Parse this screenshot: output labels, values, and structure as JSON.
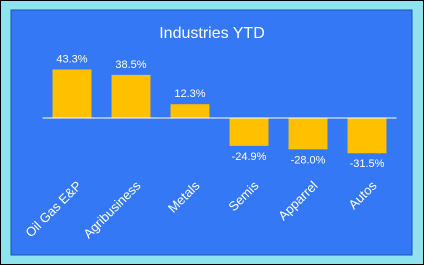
{
  "chart_data": {
    "type": "bar",
    "title": "Industries YTD",
    "categories": [
      "Oil Gas E&P",
      "Agribusiness",
      "Metals",
      "Semis",
      "Apparrel",
      "Autos"
    ],
    "values": [
      43.3,
      38.5,
      12.3,
      -24.9,
      -28.0,
      -31.5
    ],
    "value_labels": [
      "43.3%",
      "38.5%",
      "12.3%",
      "-24.9%",
      "-28.0%",
      "-31.5%"
    ],
    "color": "#ffc000",
    "ylim": [
      -50,
      50
    ]
  }
}
